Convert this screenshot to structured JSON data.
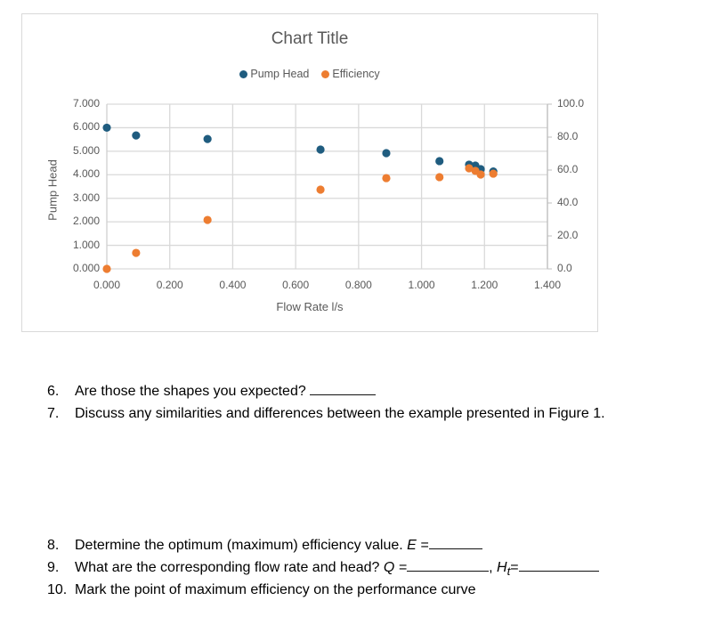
{
  "chart_data": {
    "type": "scatter",
    "title": "Chart Title",
    "xlabel": "Flow Rate l/s",
    "ylabel": "Pump Head",
    "y2label": "",
    "xlim": [
      0,
      1.4
    ],
    "ylim": [
      0,
      7
    ],
    "y2lim": [
      0,
      100
    ],
    "x_ticks": [
      "0.000",
      "0.200",
      "0.400",
      "0.600",
      "0.800",
      "1.000",
      "1.200",
      "1.400"
    ],
    "y_ticks": [
      "0.000",
      "1.000",
      "2.000",
      "3.000",
      "4.000",
      "5.000",
      "6.000",
      "7.000"
    ],
    "y2_ticks": [
      "0.0",
      "20.0",
      "40.0",
      "60.0",
      "80.0",
      "100.0"
    ],
    "grid": true,
    "legend_position": "top",
    "series": [
      {
        "name": "Pump Head",
        "axis": "left",
        "color": "#1f5c7f",
        "x": [
          0.0,
          0.093,
          0.32,
          0.679,
          0.888,
          1.057,
          1.151,
          1.171,
          1.188,
          1.228
        ],
        "y": [
          6.0,
          5.67,
          5.52,
          5.07,
          4.92,
          4.58,
          4.43,
          4.39,
          4.24,
          4.14
        ]
      },
      {
        "name": "Efficiency",
        "axis": "right",
        "color": "#ed7d31",
        "x": [
          0.0,
          0.093,
          0.32,
          0.679,
          0.888,
          1.057,
          1.151,
          1.171,
          1.188,
          1.228
        ],
        "y": [
          0.0,
          9.7,
          29.7,
          48.1,
          55.1,
          55.7,
          61.1,
          59.5,
          57.3,
          57.8
        ]
      }
    ]
  },
  "questions": [
    {
      "num": "6.",
      "text": "Are those the shapes you expected?"
    },
    {
      "num": "7.",
      "text": "Discuss any similarities and differences between the example presented in Figure 1."
    },
    {
      "num": "8.",
      "text": "Determine the optimum (maximum) efficiency value.",
      "var": "E ="
    },
    {
      "num": "9.",
      "text": "What are the corresponding flow rate and head?",
      "var": "Q =",
      "sep": ",",
      "var2": "H",
      "var2_sub": "t",
      "var2_eq": "="
    },
    {
      "num": "10.",
      "text": "Mark the point of maximum efficiency on the performance curve"
    }
  ]
}
